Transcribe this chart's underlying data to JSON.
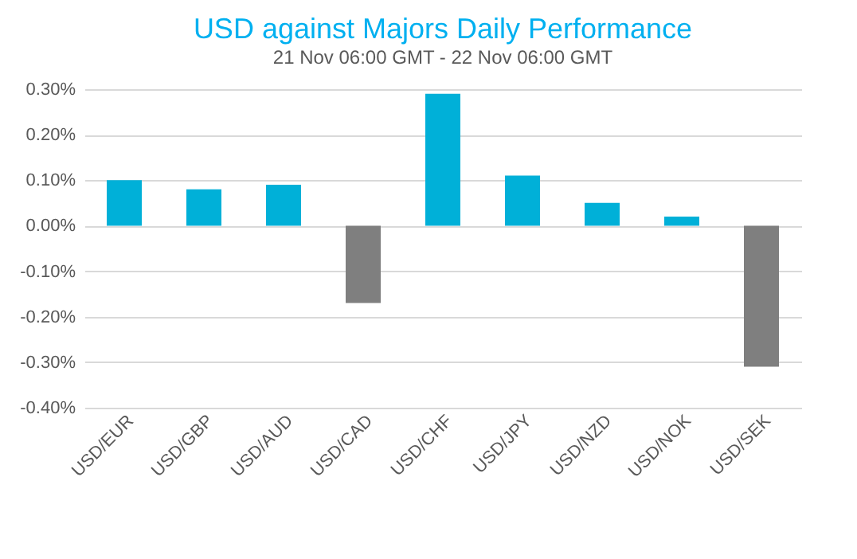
{
  "chart_data": {
    "type": "bar",
    "title": "USD against Majors Daily Performance",
    "subtitle": "21 Nov 06:00 GMT - 22 Nov 06:00 GMT",
    "categories": [
      "USD/EUR",
      "USD/GBP",
      "USD/AUD",
      "USD/CAD",
      "USD/CHF",
      "USD/JPY",
      "USD/NZD",
      "USD/NOK",
      "USD/SEK"
    ],
    "values": [
      0.1,
      0.08,
      0.09,
      -0.17,
      0.29,
      0.11,
      0.05,
      0.02,
      -0.31
    ],
    "colors": [
      "#00b0d8",
      "#00b0d8",
      "#00b0d8",
      "#7f7f7f",
      "#00b0d8",
      "#00b0d8",
      "#00b0d8",
      "#00b0d8",
      "#7f7f7f"
    ],
    "ylim": [
      -0.4,
      0.3
    ],
    "yticks": [
      {
        "value": -0.4,
        "label": "-0.40%"
      },
      {
        "value": -0.3,
        "label": "-0.30%"
      },
      {
        "value": -0.2,
        "label": "-0.20%"
      },
      {
        "value": -0.1,
        "label": "-0.10%"
      },
      {
        "value": 0,
        "label": "0.00%"
      },
      {
        "value": 0.1,
        "label": "0.10%"
      },
      {
        "value": 0.2,
        "label": "0.20%"
      },
      {
        "value": 0.3,
        "label": "0.30%"
      }
    ],
    "grid": "y",
    "legend": false
  }
}
